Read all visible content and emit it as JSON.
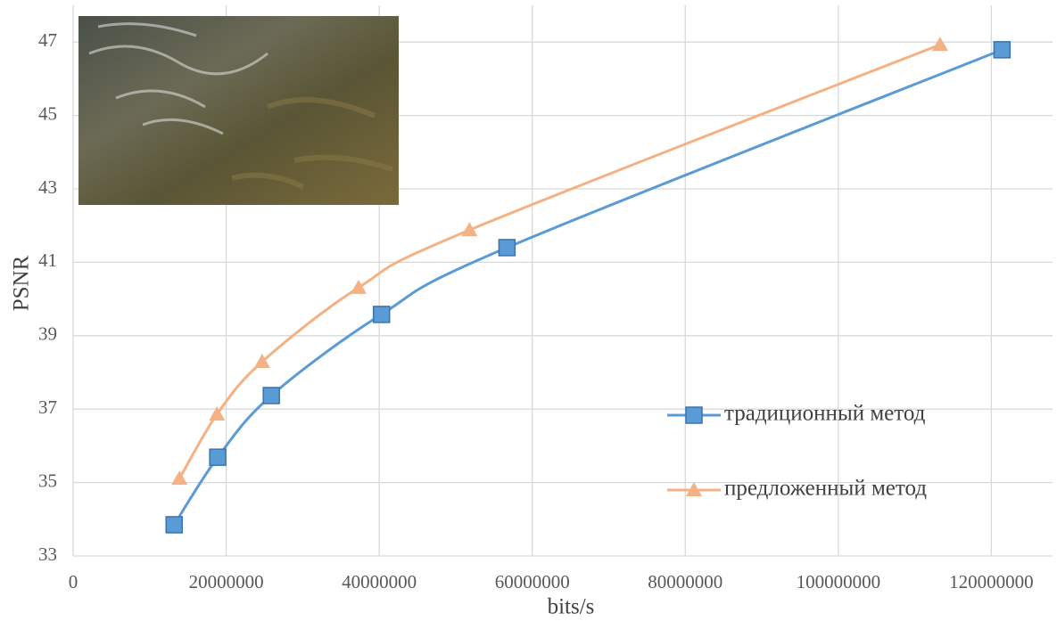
{
  "chart_data": {
    "type": "line",
    "x_label": "bits/s",
    "y_label": "PSNR",
    "xlim": [
      0,
      128000000
    ],
    "xticks": [
      0,
      20000000,
      40000000,
      60000000,
      80000000,
      100000000,
      120000000
    ],
    "ylim": [
      33,
      48
    ],
    "yticks": [
      33,
      35,
      37,
      39,
      41,
      43,
      45,
      47
    ],
    "grid": true,
    "legend": "lower right",
    "series": [
      {
        "name": "традиционный метод",
        "color": "#5b9bd5",
        "marker": "square",
        "x": [
          13200000,
          18900000,
          25900000,
          40300000,
          56700000,
          121400000
        ],
        "values": [
          33.85,
          35.69,
          37.37,
          39.58,
          41.4,
          46.79
        ]
      },
      {
        "name": "предложенный метод",
        "color": "#f4b183",
        "marker": "triangle",
        "x": [
          13900000,
          18800000,
          24700000,
          37300000,
          51800000,
          113300000
        ],
        "values": [
          35.11,
          36.86,
          38.29,
          40.31,
          41.88,
          46.93
        ]
      }
    ]
  }
}
